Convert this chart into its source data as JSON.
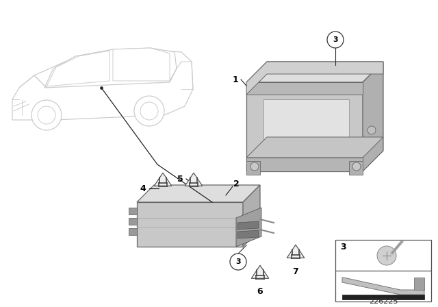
{
  "bg_color": "#ffffff",
  "diagram_id": "226225",
  "part_color_front": "#c8c8c8",
  "part_color_top": "#dedede",
  "part_color_right": "#b0b0b0",
  "part_color_dark": "#888888",
  "edge_color": "#666666",
  "label_color": "#000000",
  "car_color": "#cccccc",
  "triangle_fill": "#f0f0f0",
  "triangle_edge": "#555555"
}
